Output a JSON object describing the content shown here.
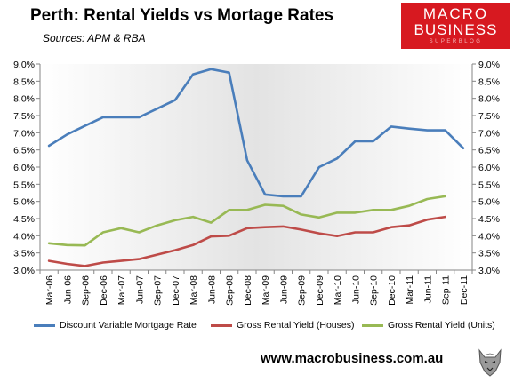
{
  "header": {
    "title": "Perth: Rental Yields vs Mortage Rates",
    "subtitle": "Sources: APM & RBA"
  },
  "logo": {
    "line1": "MACRO",
    "line2": "BUSINESS",
    "line3": "SUPERBLOG"
  },
  "footer": {
    "url": "www.macrobusiness.com.au"
  },
  "colors": {
    "mortgage": "#4a7ebb",
    "houses": "#be4b48",
    "units": "#98b954"
  },
  "chart_data": {
    "type": "line",
    "categories": [
      "Mar-06",
      "Jun-06",
      "Sep-06",
      "Dec-06",
      "Mar-07",
      "Jun-07",
      "Sep-07",
      "Dec-07",
      "Mar-08",
      "Jun-08",
      "Sep-08",
      "Dec-08",
      "Mar-09",
      "Jun-09",
      "Sep-09",
      "Dec-09",
      "Mar-10",
      "Jun-10",
      "Sep-10",
      "Dec-10",
      "Mar-11",
      "Jun-11",
      "Sep-11",
      "Dec-11"
    ],
    "ylim": [
      3.0,
      9.0
    ],
    "yticks": [
      "3.0%",
      "3.5%",
      "4.0%",
      "4.5%",
      "5.0%",
      "5.5%",
      "6.0%",
      "6.5%",
      "7.0%",
      "7.5%",
      "8.0%",
      "8.5%",
      "9.0%"
    ],
    "grid": false,
    "legend": "bottom",
    "series": [
      {
        "name": "Discount Variable Mortgage Rate",
        "color": "#4a7ebb",
        "values": [
          6.62,
          6.95,
          7.2,
          7.45,
          7.45,
          7.45,
          7.7,
          7.95,
          8.7,
          8.85,
          8.75,
          6.2,
          5.2,
          5.15,
          5.15,
          6.0,
          6.25,
          6.75,
          6.75,
          7.18,
          7.12,
          7.07,
          7.07,
          6.55
        ]
      },
      {
        "name": "Gross Rental Yield (Houses)",
        "color": "#be4b48",
        "values": [
          3.27,
          3.18,
          3.12,
          3.22,
          3.27,
          3.32,
          3.45,
          3.58,
          3.73,
          3.98,
          4.0,
          4.22,
          4.25,
          4.27,
          4.18,
          4.07,
          3.99,
          4.1,
          4.1,
          4.25,
          4.3,
          4.47,
          4.55,
          null
        ]
      },
      {
        "name": "Gross Rental Yield (Units)",
        "color": "#98b954",
        "values": [
          3.78,
          3.73,
          3.72,
          4.1,
          4.22,
          4.1,
          4.3,
          4.45,
          4.55,
          4.38,
          4.75,
          4.75,
          4.9,
          4.87,
          4.62,
          4.53,
          4.67,
          4.67,
          4.75,
          4.75,
          4.87,
          5.07,
          5.15,
          null
        ]
      }
    ]
  }
}
